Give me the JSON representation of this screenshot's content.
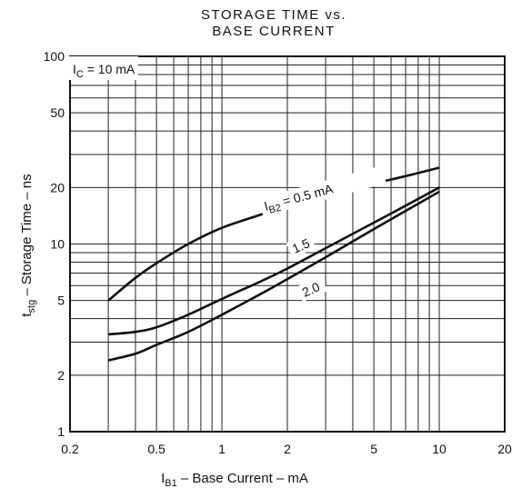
{
  "chart_data": {
    "type": "line",
    "title_line1": "STORAGE TIME vs.",
    "title_line2": "BASE CURRENT",
    "xlabel": {
      "sym": "I",
      "sub": "B1",
      "text": " – Base Current – mA"
    },
    "ylabel": {
      "sym": "t",
      "sub": "stg",
      "text": " – Storage Time – ns"
    },
    "x_scale": "log",
    "y_scale": "log",
    "xlim": [
      0.2,
      20
    ],
    "ylim": [
      1,
      100
    ],
    "x_ticks": [
      0.2,
      0.5,
      1,
      2,
      5,
      10,
      20
    ],
    "x_tick_labels": [
      "0.2",
      "0.5",
      "1",
      "2",
      "5",
      "10",
      "20"
    ],
    "y_ticks": [
      1,
      2,
      5,
      10,
      20,
      50,
      100
    ],
    "y_tick_labels": [
      "1",
      "2",
      "5",
      "10",
      "20",
      "50",
      "100"
    ],
    "grid": true,
    "condition": {
      "sym": "I",
      "sub": "C",
      "text": " = 10 mA"
    },
    "series": [
      {
        "name": "0.5 mA",
        "x": [
          0.3,
          0.4,
          0.5,
          0.7,
          1,
          1.5,
          2,
          3,
          5,
          7,
          10
        ],
        "y": [
          5,
          6.6,
          7.9,
          10,
          12.2,
          14.3,
          16,
          18,
          21,
          23,
          25.5
        ]
      },
      {
        "name": "1.5",
        "x": [
          0.3,
          0.4,
          0.5,
          0.7,
          1,
          1.5,
          2,
          3,
          5,
          7,
          10
        ],
        "y": [
          3.3,
          3.4,
          3.6,
          4.2,
          5.1,
          6.3,
          7.4,
          9.5,
          13,
          16,
          20
        ]
      },
      {
        "name": "2.0",
        "x": [
          0.3,
          0.4,
          0.5,
          0.7,
          1,
          1.5,
          2,
          3,
          5,
          7,
          10
        ],
        "y": [
          2.4,
          2.6,
          2.9,
          3.4,
          4.2,
          5.4,
          6.5,
          8.5,
          12,
          15,
          19
        ]
      }
    ],
    "annotations": [
      {
        "sym": "I",
        "sub": "B2",
        "text": " = 0.5 mA"
      },
      {
        "text": "1.5"
      },
      {
        "text": "2.0"
      }
    ]
  }
}
